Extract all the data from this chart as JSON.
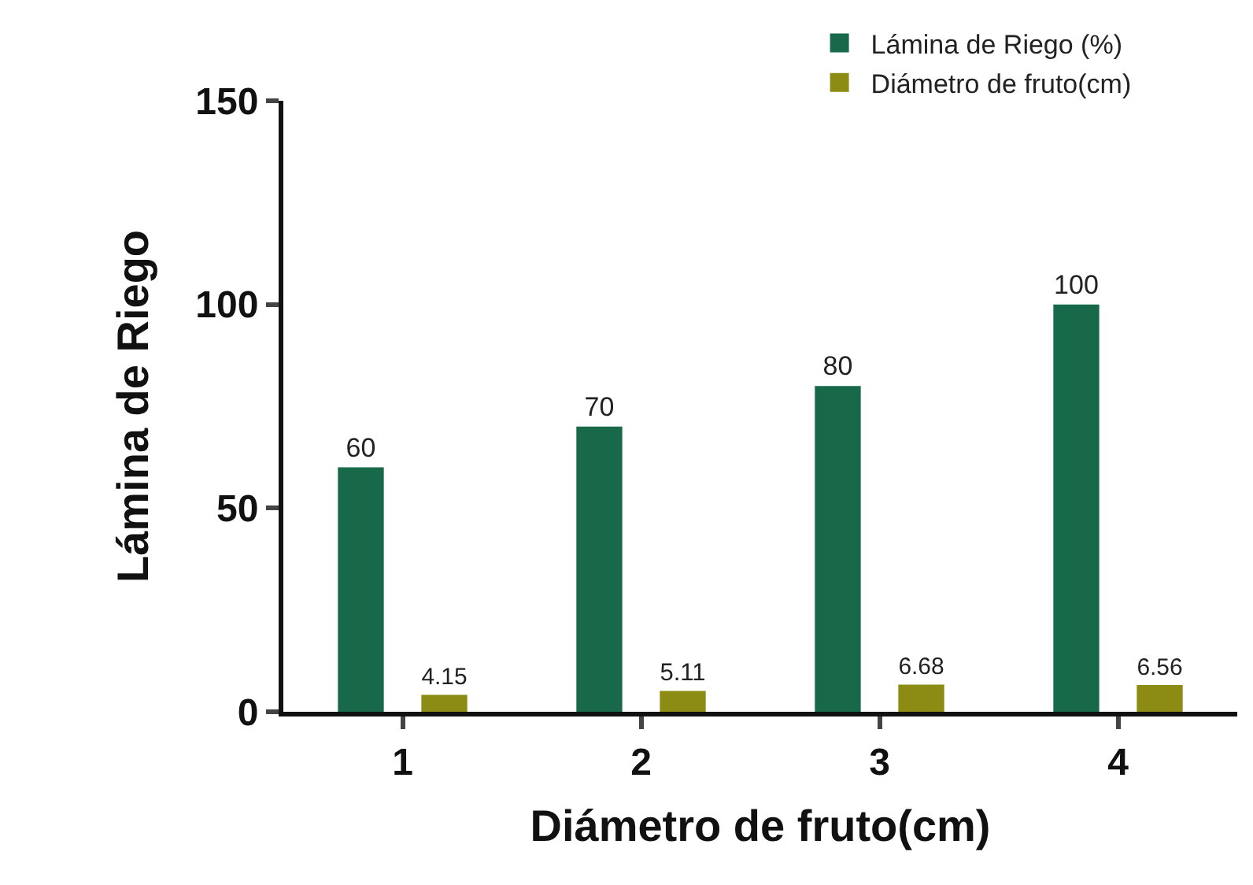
{
  "chart_data": {
    "type": "bar",
    "xlabel": "Diámetro de fruto(cm)",
    "ylabel": "Lámina de Riego",
    "categories": [
      "1",
      "2",
      "3",
      "4"
    ],
    "series": [
      {
        "name": "Lámina de Riego (%)",
        "color": "#17694a",
        "values": [
          60,
          70,
          80,
          100
        ]
      },
      {
        "name": "Diámetro de fruto(cm)",
        "color": "#8c8c14",
        "values": [
          4.15,
          5.11,
          6.68,
          6.56
        ]
      }
    ],
    "ylim": [
      0,
      150
    ],
    "yticks": [
      0,
      50,
      100,
      150
    ],
    "data_labels": true,
    "grid": false,
    "legend": "top right"
  }
}
